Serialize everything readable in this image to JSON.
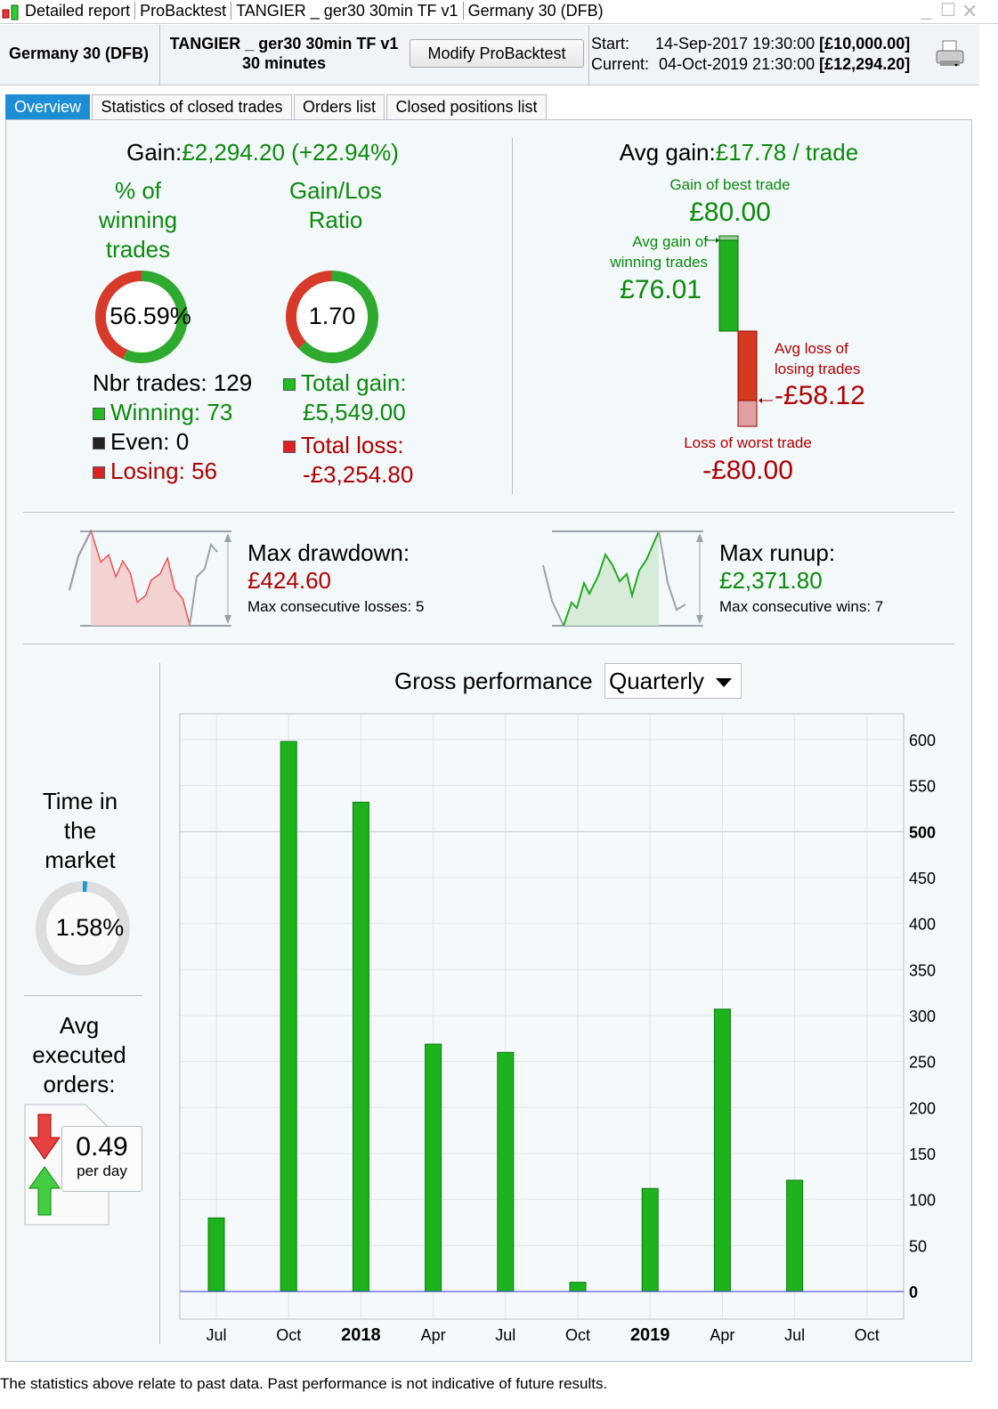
{
  "window": {
    "title_parts": [
      "Detailed report",
      "ProBacktest",
      "TANGIER _ ger30 30min TF v1",
      "Germany 30 (DFB)"
    ]
  },
  "header": {
    "instrument": "Germany 30 (DFB)",
    "system_name": "TANGIER _ ger30 30min TF v1",
    "timeframe": "30 minutes",
    "modify_button": "Modify ProBacktest",
    "start_label": "Start:",
    "start_value": "14-Sep-2017 19:30:00",
    "start_capital": "[£10,000.00]",
    "current_label": "Current:",
    "current_value": "04-Oct-2019 21:30:00",
    "current_capital": "[£12,294.20]"
  },
  "tabs": [
    {
      "label": "Overview",
      "active": true
    },
    {
      "label": "Statistics of closed trades"
    },
    {
      "label": "Orders list"
    },
    {
      "label": "Closed positions list"
    }
  ],
  "gain": {
    "label": "Gain:",
    "value": "£2,294.20 (+22.94%)",
    "pct_winning_label": "% of winning trades",
    "pct_winning_value": "56.59%",
    "pct_winning": 56.59,
    "ratio_label": "Gain/Los Ratio",
    "ratio_value": "1.70",
    "ratio": 1.7,
    "nbr_trades": "Nbr trades: 129",
    "winning": "Winning: 73",
    "even": "Even: 0",
    "losing": "Losing: 56",
    "total_gain_label": "Total gain:",
    "total_gain": "£5,549.00",
    "total_loss_label": "Total loss:",
    "total_loss": "-£3,254.80"
  },
  "avg": {
    "label": "Avg gain:",
    "value": "£17.78 / trade",
    "best_label": "Gain of best trade",
    "best": "£80.00",
    "avg_win_label": "Avg gain of winning trades",
    "avg_win": "£76.01",
    "avg_loss_label": "Avg loss of losing trades",
    "avg_loss": "-£58.12",
    "worst_label": "Loss of worst trade",
    "worst": "-£80.00"
  },
  "drawdown": {
    "label": "Max drawdown:",
    "value": "£424.60",
    "consec": "Max consecutive losses: 5"
  },
  "runup": {
    "label": "Max runup:",
    "value": "£2,371.80",
    "consec": "Max consecutive wins: 7"
  },
  "time_in_market": {
    "label": "Time in the market",
    "value": "1.58%",
    "pct": 1.58
  },
  "orders": {
    "label": "Avg executed orders:",
    "value": "0.49",
    "unit": "per day"
  },
  "chart_data": {
    "type": "bar",
    "title": "Gross performance",
    "period_select": "Quarterly",
    "categories": [
      "Jul",
      "Oct",
      "2018",
      "Apr",
      "Jul",
      "Oct",
      "2019",
      "Apr",
      "Jul",
      "Oct"
    ],
    "bold_categories": [
      "2018",
      "2019"
    ],
    "values": [
      80,
      598,
      532,
      269,
      260,
      10,
      112,
      307,
      121,
      0
    ],
    "ylim": [
      -30,
      630
    ],
    "yticks": [
      0,
      50,
      100,
      150,
      200,
      250,
      300,
      350,
      400,
      450,
      500,
      550,
      600
    ],
    "grid": true,
    "bar_color": "#1db31d",
    "zero_line_color": "#3333cc"
  },
  "footer": "The statistics above relate to past data. Past performance is not indicative of future results.",
  "colors": {
    "green": "#0b8a0b",
    "red": "#b00000",
    "tab_active": "#1d8ed6"
  }
}
